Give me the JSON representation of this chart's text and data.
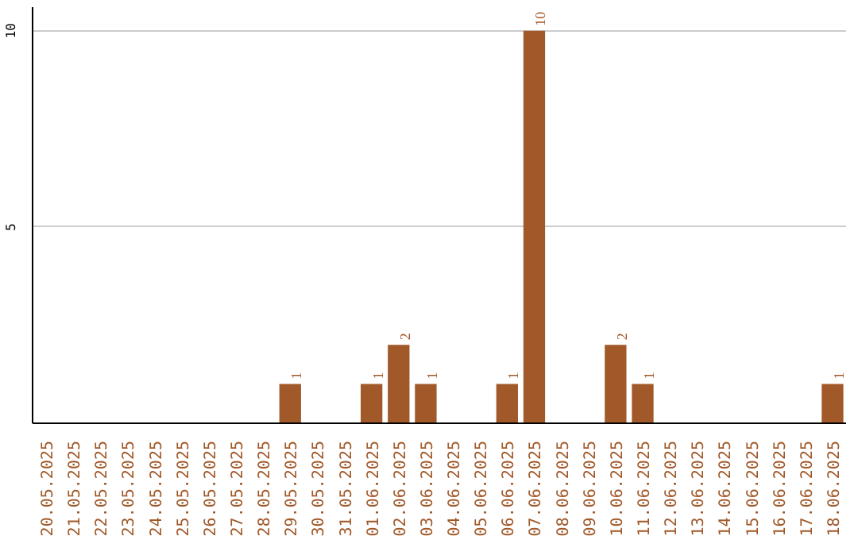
{
  "chart_data": {
    "type": "bar",
    "categories": [
      "20.05.2025",
      "21.05.2025",
      "22.05.2025",
      "23.05.2025",
      "24.05.2025",
      "25.05.2025",
      "26.05.2025",
      "27.05.2025",
      "28.05.2025",
      "29.05.2025",
      "30.05.2025",
      "31.05.2025",
      "01.06.2025",
      "02.06.2025",
      "03.06.2025",
      "04.06.2025",
      "05.06.2025",
      "06.06.2025",
      "07.06.2025",
      "08.06.2025",
      "09.06.2025",
      "10.06.2025",
      "11.06.2025",
      "12.06.2025",
      "13.06.2025",
      "14.06.2025",
      "15.06.2025",
      "16.06.2025",
      "17.06.2025",
      "18.06.2025"
    ],
    "values": [
      0,
      0,
      0,
      0,
      0,
      0,
      0,
      0,
      0,
      1,
      0,
      0,
      1,
      2,
      1,
      0,
      0,
      1,
      10,
      0,
      0,
      2,
      1,
      0,
      0,
      0,
      0,
      0,
      0,
      1
    ],
    "value_labels": [
      null,
      null,
      null,
      null,
      null,
      null,
      null,
      null,
      null,
      "1",
      null,
      null,
      "1",
      "2",
      "1",
      null,
      null,
      "1",
      "10",
      null,
      null,
      "2",
      "1",
      null,
      null,
      null,
      null,
      null,
      null,
      "1"
    ],
    "color": "#a15929",
    "ylim": [
      0,
      10.6
    ],
    "yticks": [
      5,
      10
    ],
    "grid": "y"
  }
}
